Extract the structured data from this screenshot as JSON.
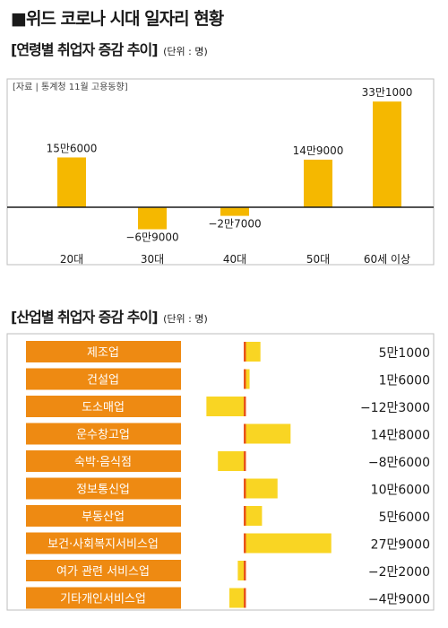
{
  "title": "■위드 코로나 시대 일자리 현황",
  "age_section": {
    "title": "[연령별 취업자 증감 추이]",
    "unit": "(단위 : 명)",
    "source": "[자료 | 통계청 11월 고용동향]"
  },
  "industry_section": {
    "title": "[산업별 취업자 증감 추이]",
    "unit": "(단위 : 명)"
  },
  "colors": {
    "age_bar": "#f5b800",
    "label_box": "#ee8a12",
    "industry_bar": "#f9d523",
    "center_line": "#e8531a",
    "axis": "#1a1a1a"
  },
  "chart_data": [
    {
      "type": "bar",
      "categories": [
        "20대",
        "30대",
        "40대",
        "50대",
        "60세 이상"
      ],
      "values": [
        156000,
        -69000,
        -27000,
        149000,
        331000
      ],
      "value_labels": [
        "15만6000",
        "−6만9000",
        "−2만7000",
        "14만9000",
        "33만1000"
      ],
      "ylim": [
        -110000,
        340000
      ],
      "grid": false
    },
    {
      "type": "bar",
      "orientation": "horizontal",
      "categories": [
        "제조업",
        "건설업",
        "도소매업",
        "운수창고업",
        "숙박·음식점",
        "정보통신업",
        "부동산업",
        "보건·사회복지서비스업",
        "여가 관련 서비스업",
        "기타개인서비스업"
      ],
      "values": [
        51000,
        16000,
        -123000,
        148000,
        -86000,
        106000,
        56000,
        279000,
        -22000,
        -49000
      ],
      "value_labels": [
        "5만1000",
        "1만6000",
        "−12만3000",
        "14만8000",
        "−8만6000",
        "10만6000",
        "5만6000",
        "27만9000",
        "−2만2000",
        "−4만9000"
      ],
      "xlim": [
        -140000,
        300000
      ],
      "grid": false
    }
  ]
}
